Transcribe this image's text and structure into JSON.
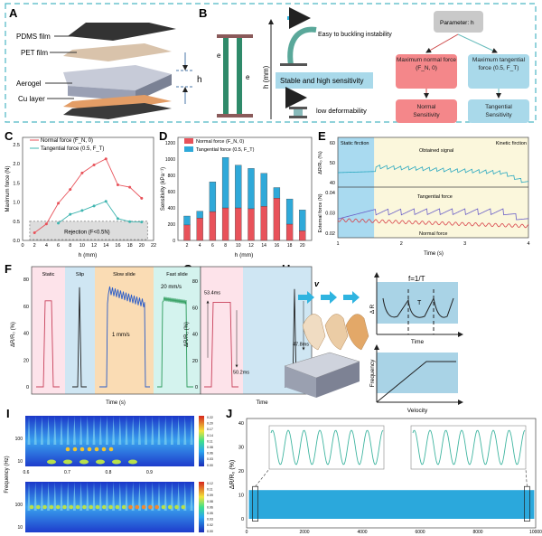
{
  "panels": {
    "A": "A",
    "B": "B",
    "C": "C",
    "D": "D",
    "E": "E",
    "F": "F",
    "G": "G",
    "H": "H",
    "I": "I",
    "J": "J"
  },
  "panel_a": {
    "layers": [
      "PDMS film",
      "PET film",
      "Aerogel",
      "Cu layer"
    ],
    "dimension": "h"
  },
  "panel_b": {
    "electron": "e",
    "axis_label": "h (mm)",
    "high_note": "Easy to buckling instability",
    "middle_band": "Stable and high sensitivity",
    "low_note": "low deformability",
    "flow": {
      "root": "Parameter: h",
      "normal_force": "Maximum normal force (F_N, 0)",
      "tangential_force": "Maximum tangential force (0.5, F_T)",
      "normal_sens": "Normal Sensitivity",
      "tangential_sens": "Tangential Sensitivity"
    }
  },
  "colors": {
    "normal": "#e8525a",
    "tangential": "#2fa9d9",
    "tangential_line": "#3fb5b0",
    "box_red": "#f4878a",
    "box_blue": "#a9d9ea",
    "frame": "#4db6c4"
  },
  "chart_data": [
    {
      "panel": "C",
      "type": "line",
      "xlabel": "h (mm)",
      "ylabel": "Maximum force (N)",
      "xlim": [
        0,
        22
      ],
      "ylim": [
        0,
        2.7
      ],
      "xticks": [
        0,
        2,
        4,
        6,
        8,
        10,
        12,
        14,
        16,
        18,
        20,
        22
      ],
      "yticks": [
        0.0,
        0.5,
        1.0,
        1.5,
        2.0,
        2.5
      ],
      "annotation": "Rejection (F<0.5N)",
      "legend": "top-left",
      "series": [
        {
          "name": "Normal force (F_N, 0)",
          "x": [
            2,
            4,
            6,
            8,
            10,
            12,
            14,
            16,
            18,
            20
          ],
          "y": [
            0.2,
            0.43,
            0.97,
            1.33,
            1.76,
            1.97,
            2.13,
            1.45,
            1.39,
            1.1
          ]
        },
        {
          "name": "Tangential force (0.5, F_T)",
          "x": [
            6,
            8,
            10,
            12,
            14,
            16,
            18,
            20
          ],
          "y": [
            0.45,
            0.68,
            0.78,
            0.9,
            1.02,
            0.57,
            0.49,
            0.48
          ]
        }
      ]
    },
    {
      "panel": "D",
      "type": "bar",
      "stacked": true,
      "xlabel": "h (mm)",
      "ylabel": "Sensitivity (kPa⁻¹)",
      "ylim": [
        0,
        1250
      ],
      "categories": [
        "2",
        "4",
        "6",
        "8",
        "10",
        "12",
        "14",
        "16",
        "18",
        "20"
      ],
      "yticks": [
        0,
        200,
        400,
        600,
        800,
        1000,
        1200
      ],
      "legend": "top-left",
      "series": [
        {
          "name": "Normal force (F_N, 0)",
          "values": [
            190,
            275,
            355,
            400,
            400,
            390,
            420,
            520,
            200,
            120
          ]
        },
        {
          "name": "Tangential force (0.5, F_T)",
          "values": [
            110,
            85,
            365,
            620,
            525,
            495,
            405,
            130,
            310,
            255
          ]
        }
      ]
    },
    {
      "panel": "E",
      "type": "line",
      "xlabel": "Time (s)",
      "xlim": [
        1,
        4
      ],
      "xticks": [
        1,
        2,
        3,
        4
      ],
      "top": {
        "ylabel": "ΔR/R₀ (%)",
        "yticks": [
          40,
          50,
          60
        ],
        "regions": [
          "Static firction",
          "Kinetic firction"
        ],
        "series_label": "Obtained signal"
      },
      "bottom": {
        "ylabel": "External force (N)",
        "yticks": [
          0.02,
          0.03,
          0.04
        ],
        "series_labels": [
          "Tangential force",
          "Normal force"
        ]
      }
    },
    {
      "panel": "F",
      "type": "line",
      "xlabel": "Time (s)",
      "ylabel": "ΔR/R₀ (%)",
      "ylim": [
        0,
        85
      ],
      "yticks": [
        0,
        20,
        40,
        60,
        80
      ],
      "regions": [
        "Static",
        "Slip",
        "Slow slide",
        "Fast slide"
      ],
      "annotations": [
        "1 mm/s",
        "20 mm/s"
      ],
      "peaks": [
        64,
        74,
        75,
        67
      ]
    },
    {
      "panel": "G",
      "type": "line",
      "xlabel": "Time",
      "ylabel": "ΔR/R₀ (%)",
      "yticks": [
        0,
        20,
        40,
        60,
        80
      ],
      "annotations": [
        "53.4ms",
        "50.2ms",
        "47.8ms"
      ],
      "peaks": [
        64,
        74
      ]
    },
    {
      "panel": "H",
      "type": "diagram",
      "velocity": "v",
      "formula": "f=1/T",
      "period": "T",
      "top_ylabel": "Δ R",
      "top_xlabel": "Time",
      "bottom_ylabel": "Frequency",
      "bottom_xlabel": "Velocity"
    },
    {
      "panel": "I",
      "type": "heatmap",
      "ylabel": "Frequency (Hz)",
      "yticks": [
        "10",
        "100"
      ],
      "xticks": [
        "0.6",
        "0.7",
        "0.8",
        "0.9"
      ],
      "colorbar_top": [
        "0.22",
        "0.20",
        "0.17",
        "0.14",
        "0.11",
        "0.08",
        "0.06",
        "0.03",
        "0.00"
      ],
      "colorbar_bottom": [
        "0.12",
        "0.11",
        "0.09",
        "0.08",
        "0.06",
        "0.05",
        "0.03",
        "0.02",
        "0.00"
      ]
    },
    {
      "panel": "J",
      "type": "area",
      "ylabel": "ΔR/R₀ (%)",
      "ylim": [
        -3,
        42
      ],
      "yticks": [
        0,
        10,
        20,
        30,
        40
      ],
      "xlim": [
        0,
        10000
      ],
      "xticks": [
        0,
        2000,
        4000,
        6000,
        8000,
        10000
      ],
      "band": [
        0,
        12
      ]
    }
  ]
}
